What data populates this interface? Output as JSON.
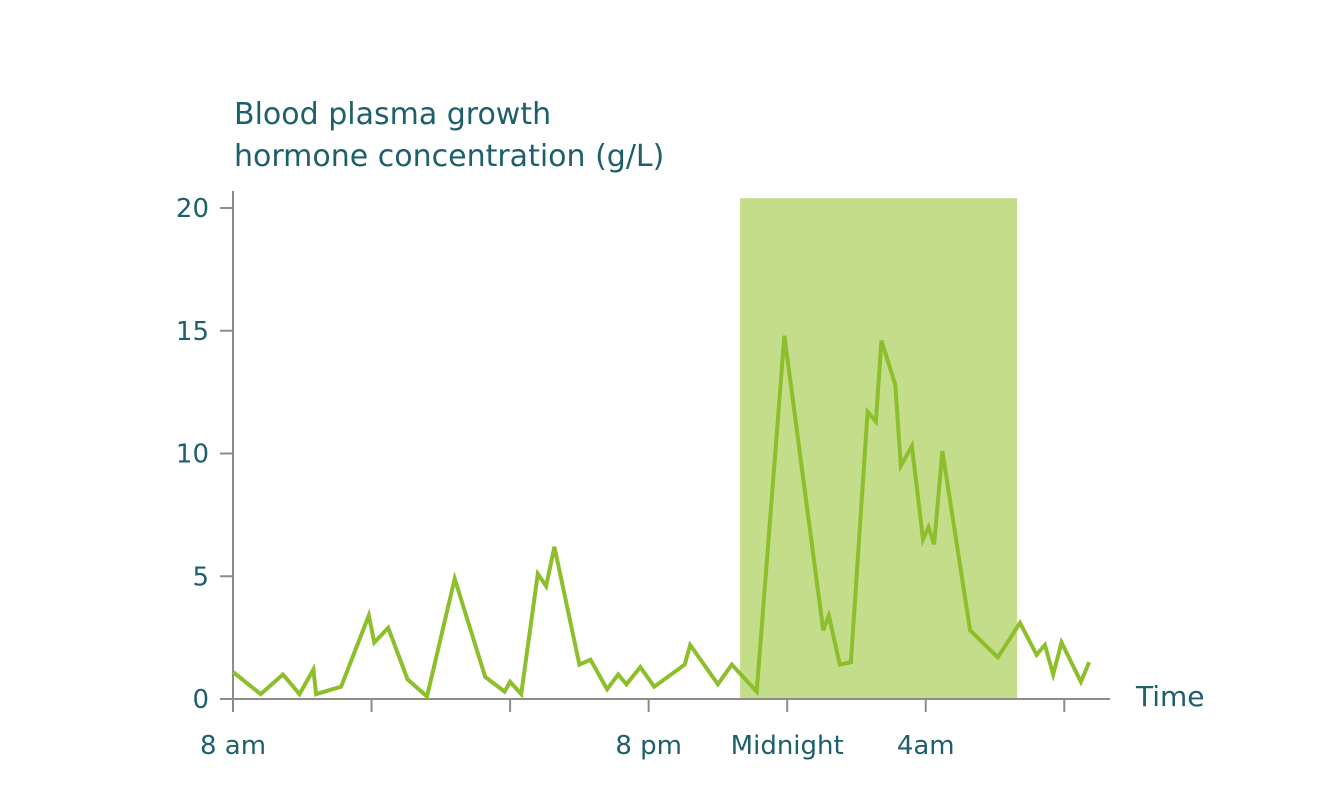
{
  "colors": {
    "text": "#1d5f6b",
    "axis": "#8c8c8c",
    "line": "#8dbe2b",
    "band": "#c4dd8a"
  },
  "chart_data": {
    "type": "line",
    "title": "",
    "ylabel_lines": [
      "Blood plasma growth",
      "hormone concentration (g/L)"
    ],
    "xlabel": "Time",
    "ylim": [
      0,
      20
    ],
    "yticks": [
      0,
      5,
      10,
      15,
      20
    ],
    "ytick_labels": [
      "0",
      "5",
      "10",
      "15",
      "20"
    ],
    "x_range": [
      0,
      31
    ],
    "xticks": [
      0,
      5,
      10,
      15,
      20,
      25,
      30
    ],
    "x_labels": [
      {
        "x": 0,
        "text": "8 am"
      },
      {
        "x": 15,
        "text": "8 pm"
      },
      {
        "x": 20,
        "text": "Midnight"
      },
      {
        "x": 25,
        "text": "4am"
      }
    ],
    "shaded_region": {
      "x_start": 18.3,
      "x_end": 28.3,
      "y_top": 20.4
    },
    "grid": false,
    "series": [
      {
        "points": [
          [
            0.0,
            1.1
          ],
          [
            1.0,
            0.2
          ],
          [
            1.8,
            1.0
          ],
          [
            2.4,
            0.2
          ],
          [
            2.9,
            1.2
          ],
          [
            3.0,
            0.2
          ],
          [
            3.9,
            0.5
          ],
          [
            4.9,
            3.4
          ],
          [
            5.1,
            2.3
          ],
          [
            5.6,
            2.9
          ],
          [
            6.3,
            0.8
          ],
          [
            7.0,
            0.1
          ],
          [
            8.0,
            4.9
          ],
          [
            9.1,
            0.9
          ],
          [
            9.8,
            0.3
          ],
          [
            10.0,
            0.7
          ],
          [
            10.4,
            0.2
          ],
          [
            11.0,
            5.1
          ],
          [
            11.3,
            4.6
          ],
          [
            11.6,
            6.2
          ],
          [
            12.5,
            1.4
          ],
          [
            12.9,
            1.6
          ],
          [
            13.5,
            0.4
          ],
          [
            13.9,
            1.0
          ],
          [
            14.2,
            0.6
          ],
          [
            14.7,
            1.3
          ],
          [
            15.2,
            0.5
          ],
          [
            16.3,
            1.4
          ],
          [
            16.5,
            2.2
          ],
          [
            17.5,
            0.6
          ],
          [
            18.0,
            1.4
          ],
          [
            18.9,
            0.3
          ],
          [
            19.9,
            14.8
          ],
          [
            21.3,
            2.8
          ],
          [
            21.5,
            3.4
          ],
          [
            21.9,
            1.4
          ],
          [
            22.3,
            1.5
          ],
          [
            22.9,
            11.7
          ],
          [
            23.2,
            11.3
          ],
          [
            23.4,
            14.6
          ],
          [
            23.9,
            12.8
          ],
          [
            24.1,
            9.5
          ],
          [
            24.5,
            10.3
          ],
          [
            24.9,
            6.5
          ],
          [
            25.1,
            7.0
          ],
          [
            25.3,
            6.3
          ],
          [
            25.6,
            10.1
          ],
          [
            26.6,
            2.8
          ],
          [
            27.6,
            1.7
          ],
          [
            28.4,
            3.1
          ],
          [
            29.0,
            1.8
          ],
          [
            29.3,
            2.2
          ],
          [
            29.6,
            1.0
          ],
          [
            29.9,
            2.3
          ],
          [
            30.6,
            0.7
          ],
          [
            30.9,
            1.5
          ]
        ]
      }
    ]
  }
}
